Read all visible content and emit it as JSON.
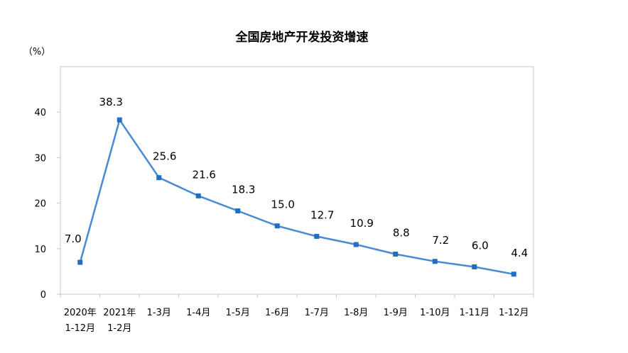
{
  "chart_data": {
    "type": "line",
    "title": "全国房地产开发投资增速",
    "ylabel": "（%）",
    "xlabel": "",
    "categories": [
      [
        "2020年",
        "1-12月"
      ],
      [
        "2021年",
        "1-2月"
      ],
      [
        "1-3月"
      ],
      [
        "1-4月"
      ],
      [
        "1-5月"
      ],
      [
        "1-6月"
      ],
      [
        "1-7月"
      ],
      [
        "1-8月"
      ],
      [
        "1-9月"
      ],
      [
        "1-10月"
      ],
      [
        "1-11月"
      ],
      [
        "1-12月"
      ]
    ],
    "values": [
      7.0,
      38.3,
      25.6,
      21.6,
      18.3,
      15.0,
      12.7,
      10.9,
      8.8,
      7.2,
      6.0,
      4.4
    ],
    "data_labels": [
      "7.0",
      "38.3",
      "25.6",
      "21.6",
      "18.3",
      "15.0",
      "12.7",
      "10.9",
      "8.8",
      "7.2",
      "6.0",
      "4.4"
    ],
    "ylim": [
      0,
      50
    ],
    "yticks": [
      0,
      10,
      20,
      30,
      40
    ],
    "grid": false,
    "legend": "none",
    "line_color": "#4a89d3",
    "marker_color": "#1f6fc5",
    "marker": "square"
  }
}
